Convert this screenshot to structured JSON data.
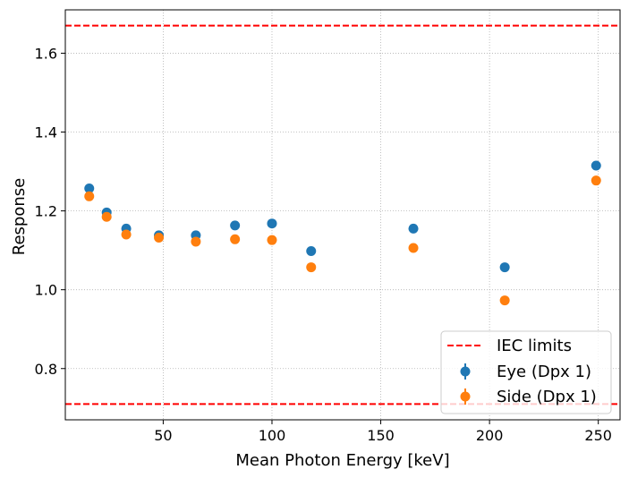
{
  "chart_data": {
    "type": "scatter",
    "title": "",
    "xlabel": "Mean Photon Energy [keV]",
    "ylabel": "Response",
    "xlim": [
      5,
      260
    ],
    "ylim": [
      0.67,
      1.71
    ],
    "grid": true,
    "legend_position": "bottom-right",
    "xticks": [
      50,
      100,
      150,
      200,
      250
    ],
    "yticks": [
      0.8,
      1.0,
      1.2,
      1.4,
      1.6
    ],
    "xtick_labels": [
      "50",
      "100",
      "150",
      "200",
      "250"
    ],
    "ytick_labels": [
      "0.8",
      "1.0",
      "1.2",
      "1.4",
      "1.6"
    ],
    "reference_lines": [
      {
        "name": "IEC limits",
        "y": 1.67,
        "color": "#ff0000"
      },
      {
        "name": "IEC limits",
        "y": 0.71,
        "color": "#ff0000"
      }
    ],
    "series": [
      {
        "name": "Eye (Dpx 1)",
        "color": "#1f77b4",
        "x": [
          16,
          24,
          33,
          48,
          65,
          83,
          100,
          118,
          165,
          207,
          249
        ],
        "y": [
          1.257,
          1.196,
          1.155,
          1.138,
          1.138,
          1.163,
          1.168,
          1.098,
          1.155,
          1.057,
          1.315
        ]
      },
      {
        "name": "Side (Dpx 1)",
        "color": "#ff7f0e",
        "x": [
          16,
          24,
          33,
          48,
          65,
          83,
          100,
          118,
          165,
          207,
          249
        ],
        "y": [
          1.237,
          1.185,
          1.14,
          1.132,
          1.122,
          1.128,
          1.126,
          1.057,
          1.106,
          0.973,
          1.277
        ]
      }
    ]
  }
}
